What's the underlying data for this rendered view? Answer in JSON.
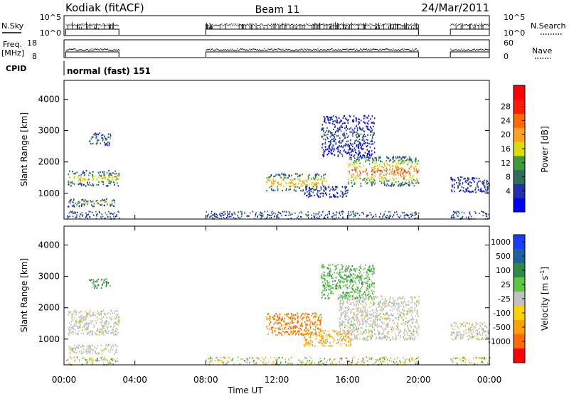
{
  "header": {
    "station": "Kodiak (fitACF)",
    "beam": "Beam 11",
    "date": "24/Mar/2011"
  },
  "panels": {
    "nsky": {
      "label": "N.Sky",
      "ticks": [
        "10^5",
        "10^0"
      ],
      "right_label": "N.Search",
      "right_ticks": [
        "10^5",
        "10^0"
      ]
    },
    "freq": {
      "label_line1": "Freq.",
      "label_line2": "[MHz]",
      "ticks": [
        "18",
        "8"
      ],
      "right_label": "Nave",
      "right_ticks": [
        "60",
        "0"
      ]
    },
    "cpid": {
      "label": "CPID",
      "mode": "normal (fast) 151"
    }
  },
  "time_axis": {
    "label": "Time UT",
    "ticks": [
      "00:00",
      "04:00",
      "08:00",
      "12:00",
      "16:00",
      "20:00",
      "00:00"
    ]
  },
  "range_axis": {
    "label": "Slant Range [km]",
    "ticks": [
      "1000",
      "2000",
      "3000",
      "4000"
    ]
  },
  "power_colorbar": {
    "label": "Power [dB]",
    "ticks": [
      "4",
      "8",
      "12",
      "16",
      "20",
      "24",
      "28"
    ],
    "colors": [
      "#0000ff",
      "#2030b0",
      "#2d6e5e",
      "#3d9a3a",
      "#dcdc00",
      "#ffa020",
      "#ff6a00",
      "#ff1a00",
      "#ff0000"
    ]
  },
  "velocity_colorbar": {
    "label": "Velocity [m s",
    "label_sup": "-1",
    "label_end": "]",
    "ticks": [
      "1000",
      "500",
      "100",
      "25",
      "-25",
      "-100",
      "-500",
      "-1000"
    ],
    "colors": [
      "#1a3cff",
      "#2060a0",
      "#2f8a4a",
      "#5ac840",
      "#c0c0c0",
      "#ffd200",
      "#ffa000",
      "#ff6a00",
      "#ff0000"
    ]
  },
  "chart_data": {
    "type": "heatmap",
    "title": "Kodiak (fitACF)",
    "xlabel": "Time UT",
    "ylabel": "Slant Range [km]",
    "xlim": [
      "00:00",
      "24:00"
    ],
    "ylim": [
      180,
      4600
    ],
    "power_regions": [
      {
        "t": [
          0.2,
          3.1
        ],
        "r": [
          1250,
          1750
        ],
        "peak_db": 20
      },
      {
        "t": [
          1.4,
          2.6
        ],
        "r": [
          2550,
          2950
        ],
        "peak_db": 12
      },
      {
        "t": [
          0.2,
          3.0
        ],
        "r": [
          600,
          850
        ],
        "peak_db": 16
      },
      {
        "t": [
          11.4,
          14.8
        ],
        "r": [
          1100,
          1650
        ],
        "peak_db": 24
      },
      {
        "t": [
          13.5,
          16.0
        ],
        "r": [
          900,
          1250
        ],
        "peak_db": 8
      },
      {
        "t": [
          16.0,
          20.0
        ],
        "r": [
          1250,
          2200
        ],
        "peak_db": 28
      },
      {
        "t": [
          14.5,
          17.5
        ],
        "r": [
          2200,
          3500
        ],
        "peak_db": 8
      },
      {
        "t": [
          21.8,
          24.0
        ],
        "r": [
          1050,
          1550
        ],
        "peak_db": 8
      }
    ],
    "velocity_regions": [
      {
        "t": [
          0.2,
          3.1
        ],
        "r": [
          1150,
          1950
        ],
        "v": 0
      },
      {
        "t": [
          0.2,
          3.0
        ],
        "r": [
          550,
          850
        ],
        "v": 0
      },
      {
        "t": [
          1.4,
          2.6
        ],
        "r": [
          2650,
          2950
        ],
        "v": 100
      },
      {
        "t": [
          11.4,
          14.5
        ],
        "r": [
          1150,
          1850
        ],
        "v": -300
      },
      {
        "t": [
          13.5,
          16.2
        ],
        "r": [
          800,
          1300
        ],
        "v": -100
      },
      {
        "t": [
          15.5,
          20.0
        ],
        "r": [
          1000,
          2400
        ],
        "v": 0
      },
      {
        "t": [
          14.5,
          17.5
        ],
        "r": [
          2300,
          3400
        ],
        "v": 50
      },
      {
        "t": [
          21.8,
          24.0
        ],
        "r": [
          1000,
          1550
        ],
        "v": 0
      }
    ],
    "operating_intervals": [
      [
        0.1,
        3.1
      ],
      [
        8.0,
        20.0
      ],
      [
        21.8,
        24.0
      ]
    ]
  }
}
